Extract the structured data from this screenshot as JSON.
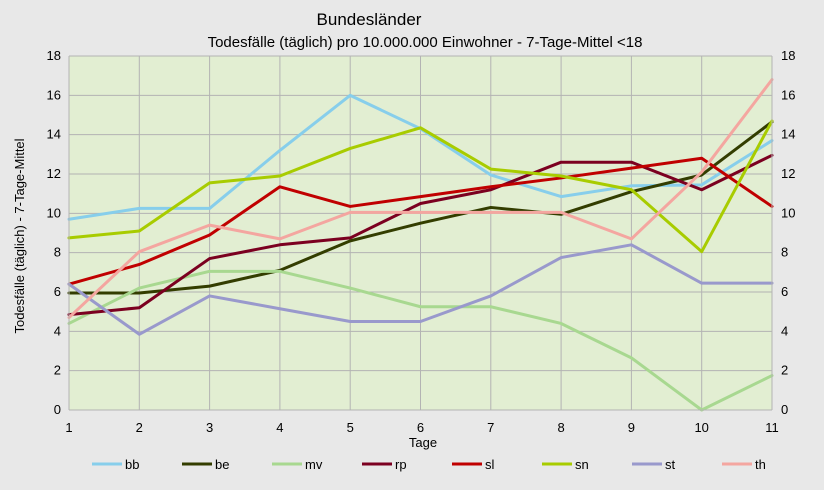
{
  "chart_data": {
    "type": "line",
    "title": "Bundesländer",
    "subtitle": "Todesfälle (täglich) pro 10.000.000 Einwohner - 7-Tage-Mittel <18",
    "xlabel": "Tage",
    "ylabel": "Todesfälle (täglich) - 7-Tage-Mittel",
    "x": [
      1,
      2,
      3,
      4,
      5,
      6,
      7,
      8,
      9,
      10,
      11
    ],
    "ylim": [
      0,
      18
    ],
    "yticks": [
      0,
      2,
      4,
      6,
      8,
      10,
      12,
      14,
      16,
      18
    ],
    "secondary_y_axis": true,
    "grid": "horizontal and vertical",
    "legend_position": "bottom",
    "plot_background": "#e2eed2",
    "series": [
      {
        "name": "bb",
        "color": "#87ceeb",
        "values": [
          9.7,
          10.25,
          10.25,
          13.2,
          16.0,
          14.3,
          11.95,
          10.85,
          11.4,
          11.45,
          13.7
        ]
      },
      {
        "name": "be",
        "color": "#333d00",
        "values": [
          5.95,
          5.95,
          6.3,
          7.1,
          8.6,
          9.5,
          10.3,
          9.95,
          11.1,
          11.95,
          14.65
        ]
      },
      {
        "name": "mv",
        "color": "#a8d890",
        "values": [
          4.4,
          6.2,
          7.05,
          7.05,
          6.2,
          5.25,
          5.25,
          4.4,
          2.65,
          0.0,
          1.75
        ]
      },
      {
        "name": "rp",
        "color": "#7b0020",
        "values": [
          4.85,
          5.2,
          7.7,
          8.4,
          8.75,
          10.5,
          11.2,
          12.6,
          12.6,
          11.2,
          12.95
        ]
      },
      {
        "name": "sl",
        "color": "#c00000",
        "values": [
          6.4,
          7.4,
          8.9,
          11.35,
          10.35,
          10.85,
          11.35,
          11.8,
          12.3,
          12.8,
          10.35
        ]
      },
      {
        "name": "sn",
        "color": "#a8cc00",
        "values": [
          8.75,
          9.1,
          11.55,
          11.9,
          13.3,
          14.35,
          12.25,
          11.9,
          11.2,
          8.05,
          14.7
        ]
      },
      {
        "name": "st",
        "color": "#9999cc",
        "values": [
          6.4,
          3.85,
          5.8,
          5.15,
          4.5,
          4.5,
          5.8,
          7.75,
          8.4,
          6.45,
          6.45
        ]
      },
      {
        "name": "th",
        "color": "#f4a6a0",
        "values": [
          4.7,
          8.05,
          9.4,
          8.7,
          10.05,
          10.05,
          10.05,
          10.05,
          8.7,
          12.1,
          16.8
        ]
      }
    ]
  }
}
